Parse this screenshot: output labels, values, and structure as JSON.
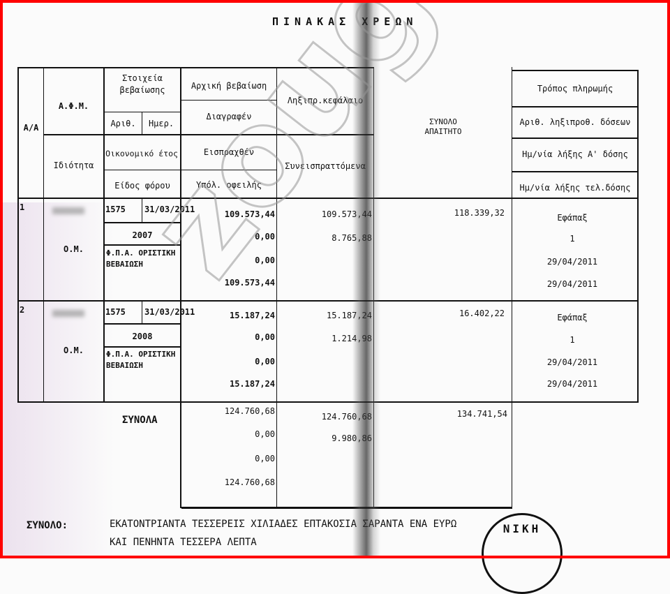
{
  "title": "ΠΙΝΑΚΑΣ ΧΡΕΩΝ",
  "watermark": "zougla.gr",
  "seal_text": "ΝΙΚΗ",
  "headers": {
    "aa": "Α/Α",
    "afm": "Α.Φ.Μ.",
    "idiotita": "Ιδιότητα",
    "stoixeia": "Στοιχεία βεβαίωσης",
    "arith": "Αριθ.",
    "imer": "Ημερ.",
    "oik_etos": "Οικονομικό έτος",
    "eidos_forou": "Είδος φόρου",
    "arxiki": "Αρχική βεβαίωση",
    "diagrafen": "Διαγραφέν",
    "eispraxthen": "Εισπραχθέν",
    "ypol": "Υπόλ. οφειλής",
    "lixipr": "Ληξιπρ.κεφάλαιο",
    "syneispr": "Συνεισπραττόμενα",
    "synolo": "ΣΥΝΟΛΟ ΑΠΑΙΤΗΤΟ",
    "tropos": "Τρόπος πληρωμής",
    "arith_doseon": "Αριθ. ληξιπροθ. δόσεων",
    "hm_a": "Ημ/νία λήξης Α' δόσης",
    "hm_tel": "Ημ/νία λήξης τελ.δόσης"
  },
  "rows": [
    {
      "aa": "1",
      "idiotita": "Ο.Μ.",
      "arith": "1575",
      "imer": "31/03/2011",
      "etos": "2007",
      "eidos": "Φ.Π.Α. ΟΡΙΣΤΙΚΗ ΒΕΒΑΙΩΣΗ",
      "arxiki": "109.573,44",
      "diagrafen": "0,00",
      "eispraxthen": "0,00",
      "ypol": "109.573,44",
      "lixipr": "109.573,44",
      "syneispr": "8.765,88",
      "synolo": "118.339,32",
      "tropos": "Εφάπαξ",
      "doseis": "1",
      "hm_a": "29/04/2011",
      "hm_tel": "29/04/2011"
    },
    {
      "aa": "2",
      "idiotita": "Ο.Μ.",
      "arith": "1575",
      "imer": "31/03/2011",
      "etos": "2008",
      "eidos": "Φ.Π.Α. ΟΡΙΣΤΙΚΗ ΒΕΒΑΙΩΣΗ",
      "arxiki": "15.187,24",
      "diagrafen": "0,00",
      "eispraxthen": "0,00",
      "ypol": "15.187,24",
      "lixipr": "15.187,24",
      "syneispr": "1.214,98",
      "synolo": "16.402,22",
      "tropos": "Εφάπαξ",
      "doseis": "1",
      "hm_a": "29/04/2011",
      "hm_tel": "29/04/2011"
    }
  ],
  "totals": {
    "label": "ΣΥΝΟΛΑ",
    "arxiki": "124.760,68",
    "diagrafen": "0,00",
    "eispraxthen": "0,00",
    "ypol": "124.760,68",
    "lixipr": "124.760,68",
    "syneispr": "9.980,86",
    "synolo": "134.741,54"
  },
  "sum_text": {
    "label": "ΣΥΝΟΛΟ:",
    "line1": "ΕΚΑΤΟΝΤΡΙΑΝΤΑ ΤΕΣΣΕΡΕΙΣ ΧΙΛΙΑΔΕΣ ΕΠΤΑΚΟΣΙΑ ΣΑΡΑΝΤΑ ΕΝΑ ΕΥΡΩ",
    "line2": "ΚΑΙ ΠΕΝΗΝΤΑ ΤΕΣΣΕΡΑ ΛΕΠΤΑ"
  }
}
